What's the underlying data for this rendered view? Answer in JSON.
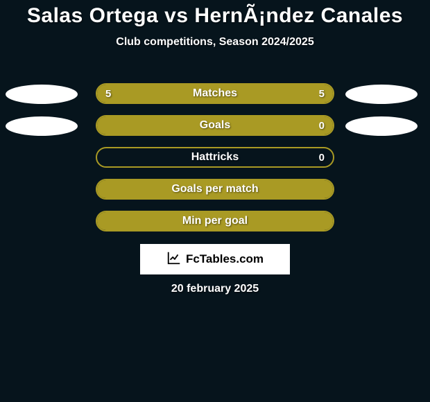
{
  "background_color": "#06141c",
  "text_color": "#ffffff",
  "title": "Salas Ortega vs HernÃ¡ndez Canales",
  "subtitle": "Club competitions, Season 2024/2025",
  "left_color": "#a99a24",
  "right_color": "#a99a24",
  "ellipse_color": "#ffffff",
  "rows": [
    {
      "label": "Matches",
      "left": "5",
      "right": "5",
      "left_fill": 50,
      "right_fill": 50,
      "show_ell": true,
      "show_vals": true
    },
    {
      "label": "Goals",
      "left": "",
      "right": "0",
      "left_fill": 100,
      "right_fill": 0,
      "show_ell": true,
      "show_vals": true
    },
    {
      "label": "Hattricks",
      "left": "",
      "right": "0",
      "left_fill": 0,
      "right_fill": 0,
      "show_ell": false,
      "show_vals": true
    },
    {
      "label": "Goals per match",
      "left": "",
      "right": "",
      "left_fill": 100,
      "right_fill": 0,
      "show_ell": false,
      "show_vals": false
    },
    {
      "label": "Min per goal",
      "left": "",
      "right": "",
      "left_fill": 100,
      "right_fill": 0,
      "show_ell": false,
      "show_vals": false
    }
  ],
  "logo": "FcTables.com",
  "date": "20 february 2025"
}
